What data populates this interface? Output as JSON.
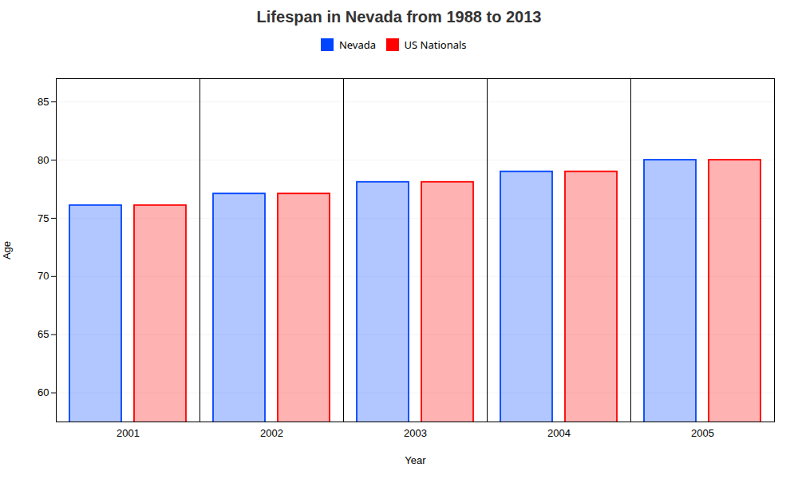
{
  "chart_data": {
    "type": "bar",
    "title": "Lifespan in Nevada from 1988 to 2013",
    "xlabel": "Year",
    "ylabel": "Age",
    "categories": [
      "2001",
      "2002",
      "2003",
      "2004",
      "2005"
    ],
    "series": [
      {
        "name": "Nevada",
        "color": "#0044ff",
        "values": [
          76.1,
          77.1,
          78.1,
          79.0,
          80.0
        ]
      },
      {
        "name": "US Nationals",
        "color": "#ff0000",
        "values": [
          76.1,
          77.1,
          78.1,
          79.0,
          80.0
        ]
      }
    ],
    "ylim": [
      57.5,
      87
    ],
    "yticks": [
      60,
      65,
      70,
      75,
      80,
      85
    ],
    "grid": true,
    "legend": "top"
  }
}
